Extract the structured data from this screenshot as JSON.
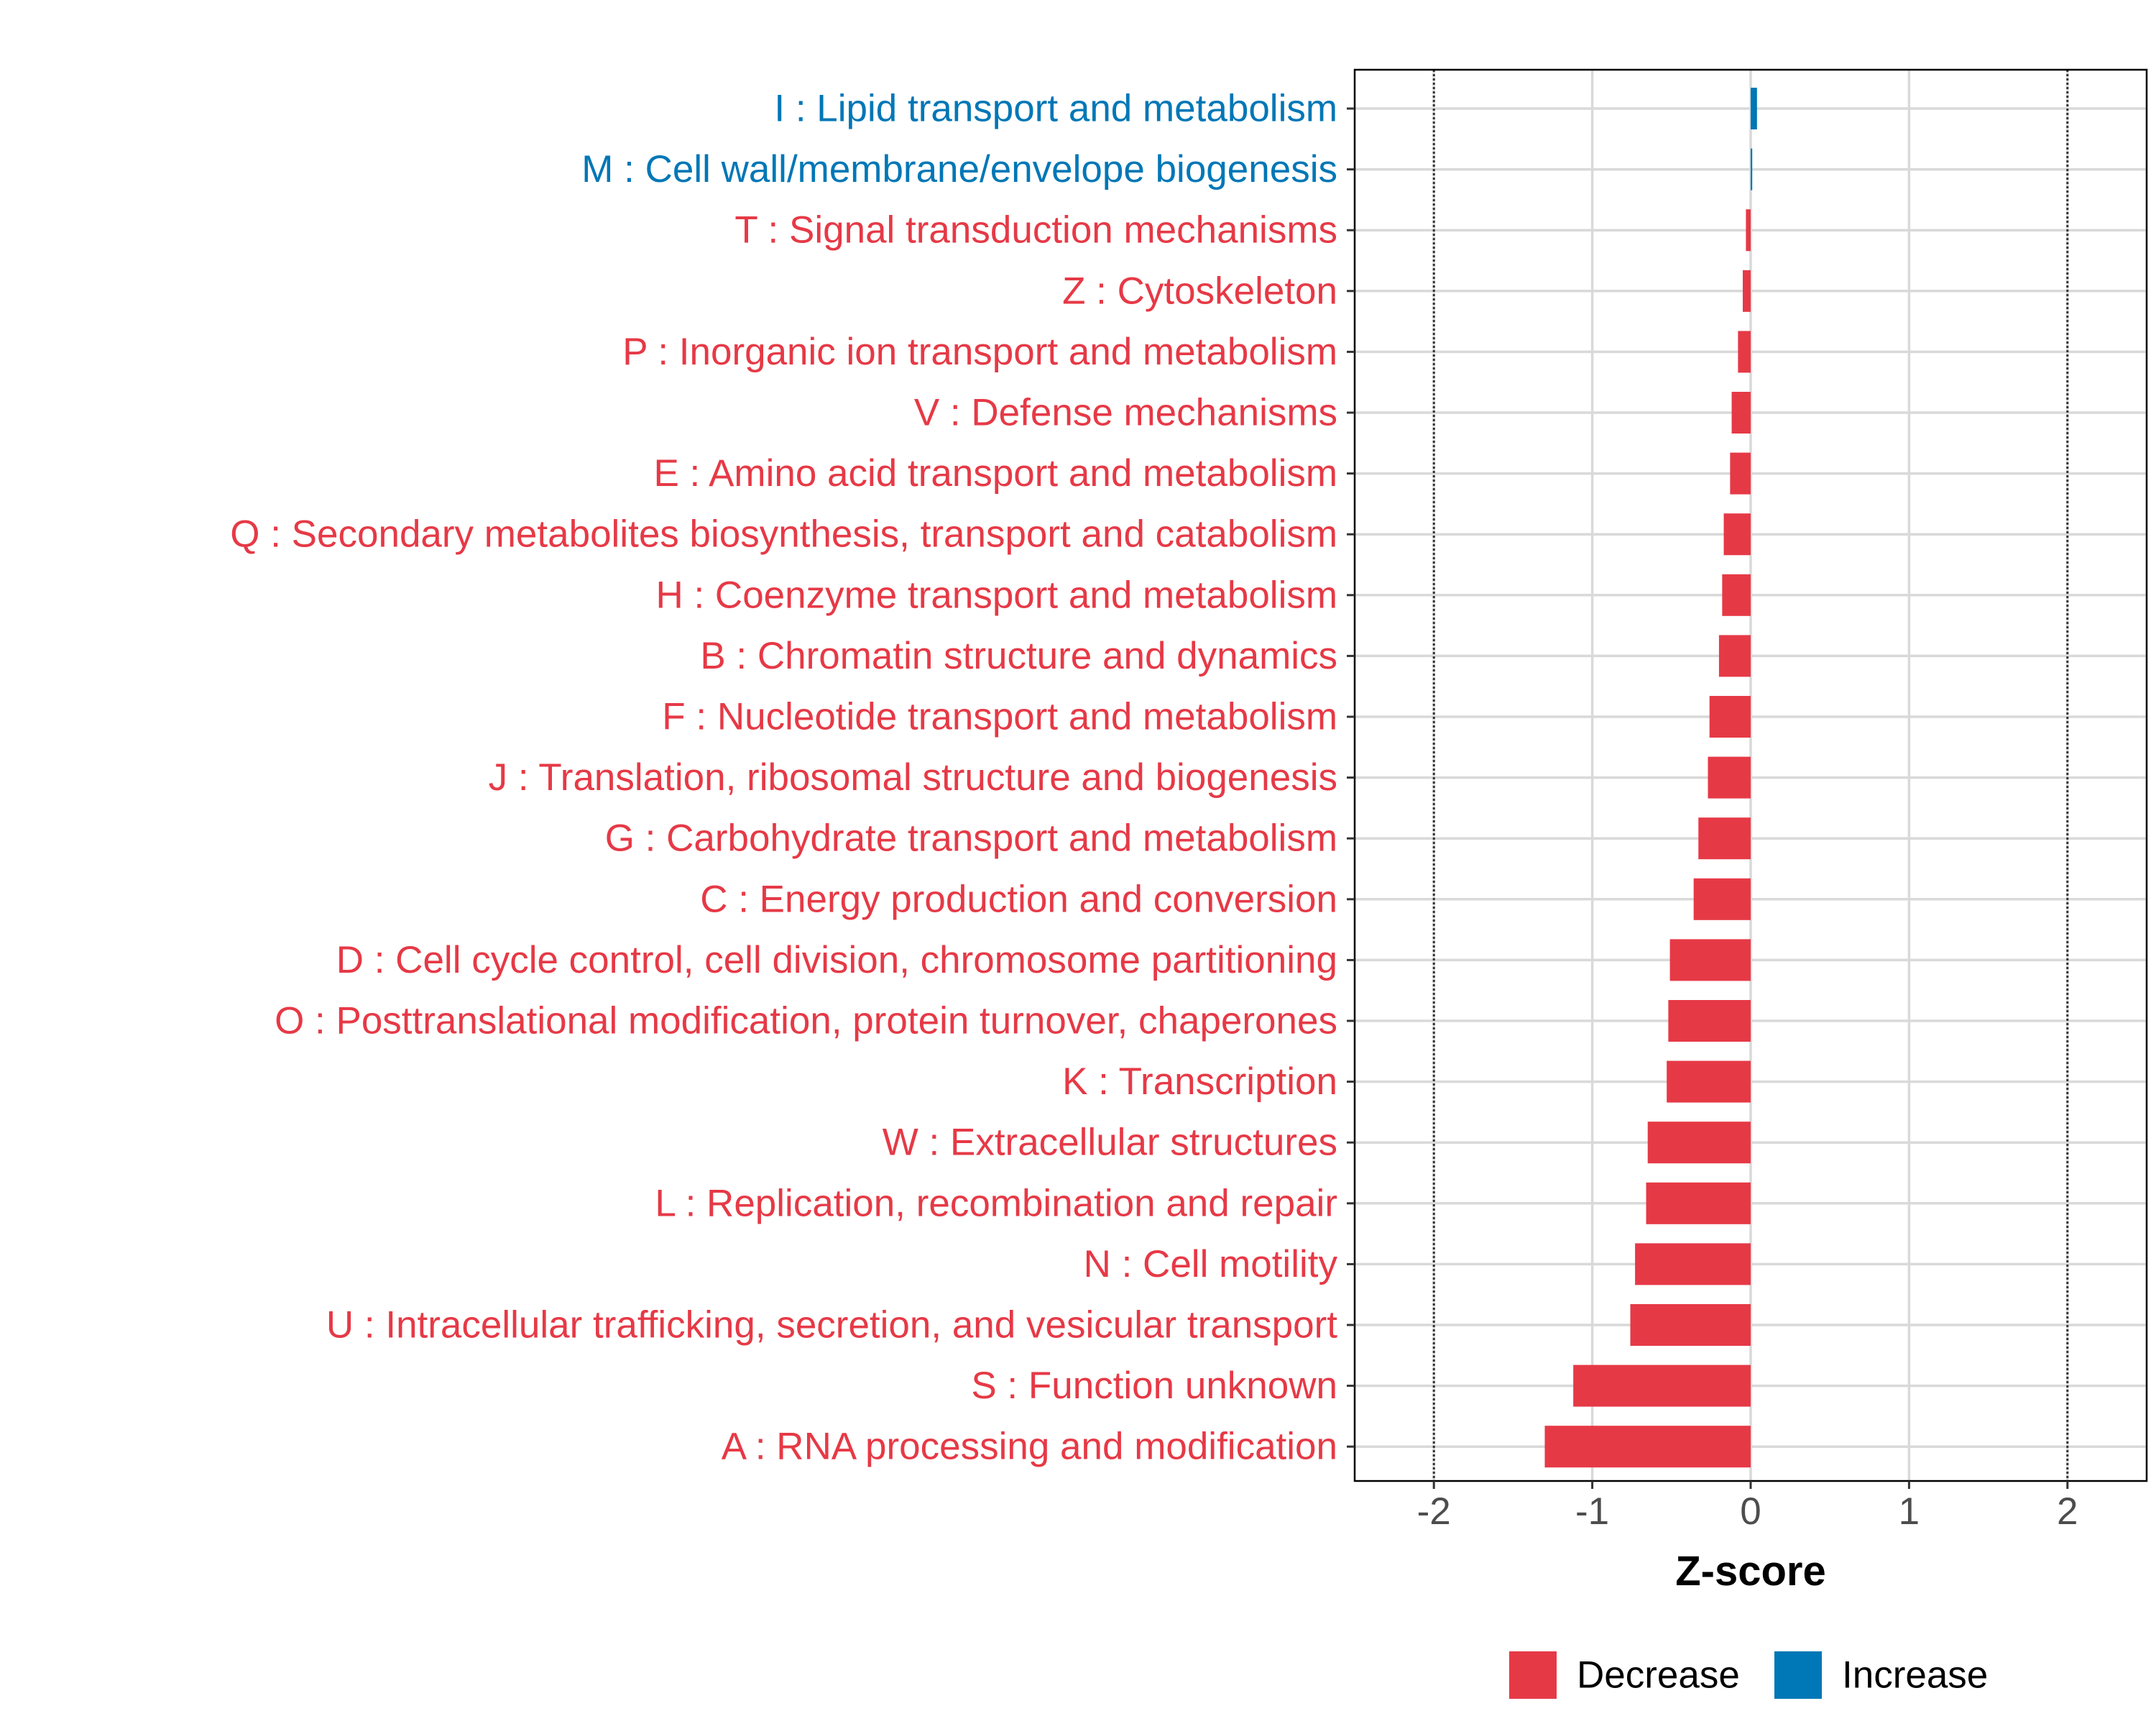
{
  "chart_data": {
    "type": "bar",
    "orientation": "horizontal",
    "xlabel": "Z-score",
    "xlim": [
      -2.5,
      2.5
    ],
    "xticks": [
      -2,
      -1,
      0,
      1,
      2
    ],
    "xtick_labels": [
      "-2",
      "-1",
      "0",
      "1",
      "2"
    ],
    "reference_lines": [
      -2,
      2
    ],
    "grid": true,
    "legend_position": "bottom",
    "colors": {
      "Decrease": "#E63946",
      "Increase": "#0077B6"
    },
    "legend": [
      {
        "label": "Decrease",
        "color": "#E63946"
      },
      {
        "label": "Increase",
        "color": "#0077B6"
      }
    ],
    "categories": [
      "I : Lipid transport and metabolism",
      "M : Cell wall/membrane/envelope biogenesis",
      "T : Signal transduction mechanisms",
      "Z : Cytoskeleton",
      "P : Inorganic ion transport and metabolism",
      "V : Defense mechanisms",
      "E : Amino acid transport and metabolism",
      "Q : Secondary metabolites biosynthesis, transport and catabolism",
      "H : Coenzyme transport and metabolism",
      "B : Chromatin structure and dynamics",
      "F : Nucleotide transport and metabolism",
      "J : Translation, ribosomal structure and biogenesis",
      "G : Carbohydrate transport and metabolism",
      "C : Energy production and conversion",
      "D : Cell cycle control, cell division, chromosome partitioning",
      "O : Posttranslational modification, protein turnover, chaperones",
      "K : Transcription",
      "W : Extracellular structures",
      "L : Replication, recombination and repair",
      "N : Cell motility",
      "U : Intracellular trafficking, secretion, and vesicular transport",
      "S : Function unknown",
      "A : RNA processing and modification"
    ],
    "values": [
      0.04,
      0.01,
      -0.03,
      -0.05,
      -0.08,
      -0.12,
      -0.13,
      -0.17,
      -0.18,
      -0.2,
      -0.26,
      -0.27,
      -0.33,
      -0.36,
      -0.51,
      -0.52,
      -0.53,
      -0.65,
      -0.66,
      -0.73,
      -0.76,
      -1.12,
      -1.3
    ],
    "direction": [
      "Increase",
      "Increase",
      "Decrease",
      "Decrease",
      "Decrease",
      "Decrease",
      "Decrease",
      "Decrease",
      "Decrease",
      "Decrease",
      "Decrease",
      "Decrease",
      "Decrease",
      "Decrease",
      "Decrease",
      "Decrease",
      "Decrease",
      "Decrease",
      "Decrease",
      "Decrease",
      "Decrease",
      "Decrease",
      "Decrease"
    ]
  }
}
